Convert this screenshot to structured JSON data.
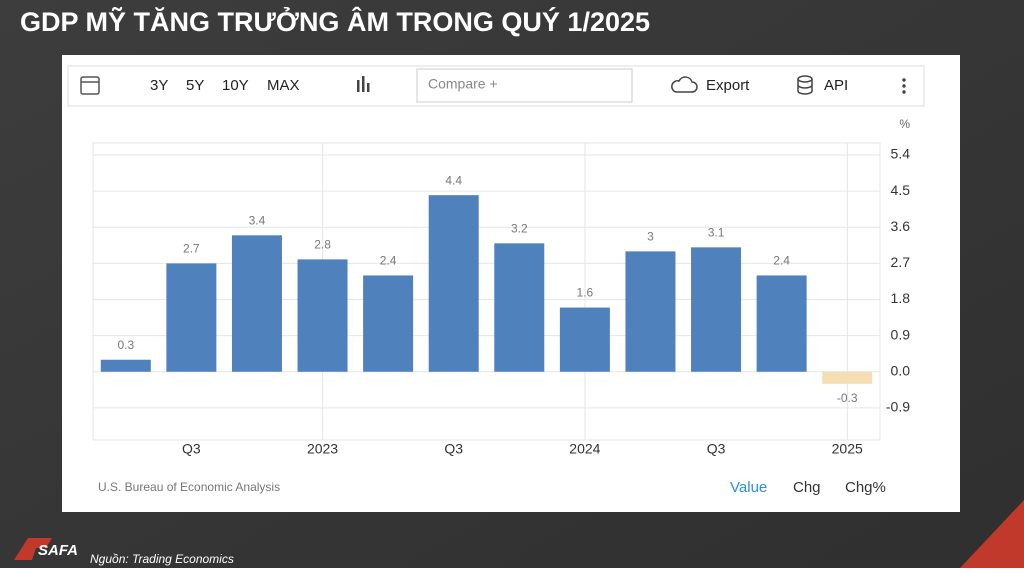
{
  "heading": "GDP MỸ TĂNG TRƯỞNG ÂM TRONG QUÝ 1/2025",
  "toolbar": {
    "ranges": [
      "3Y",
      "5Y",
      "10Y",
      "MAX"
    ],
    "compare": "Compare +",
    "export": "Export",
    "api": "API"
  },
  "chart_data": {
    "type": "bar",
    "unit": "%",
    "categories": [
      null,
      "Q3",
      null,
      "2023",
      null,
      "Q3",
      null,
      "2024",
      null,
      "Q3",
      null,
      "2025"
    ],
    "values": [
      0.3,
      2.7,
      3.4,
      2.8,
      2.4,
      4.4,
      3.2,
      1.6,
      3,
      3.1,
      2.4,
      -0.3
    ],
    "color": "#4f81bd",
    "negative_color": "#f5deb3",
    "ylim": [
      -1.7,
      5.7
    ],
    "yticks": [
      5.4,
      4.5,
      3.6,
      2.7,
      1.8,
      0.9,
      {
        "value": 0,
        "label": "0.0"
      },
      -0.9
    ],
    "grid": true,
    "source": "U.S. Bureau of Economic Analysis"
  },
  "tabs": [
    "Value",
    "Chg",
    "Chg%"
  ],
  "logo": "SAFA",
  "footer": "Nguồn: Trading Economics"
}
